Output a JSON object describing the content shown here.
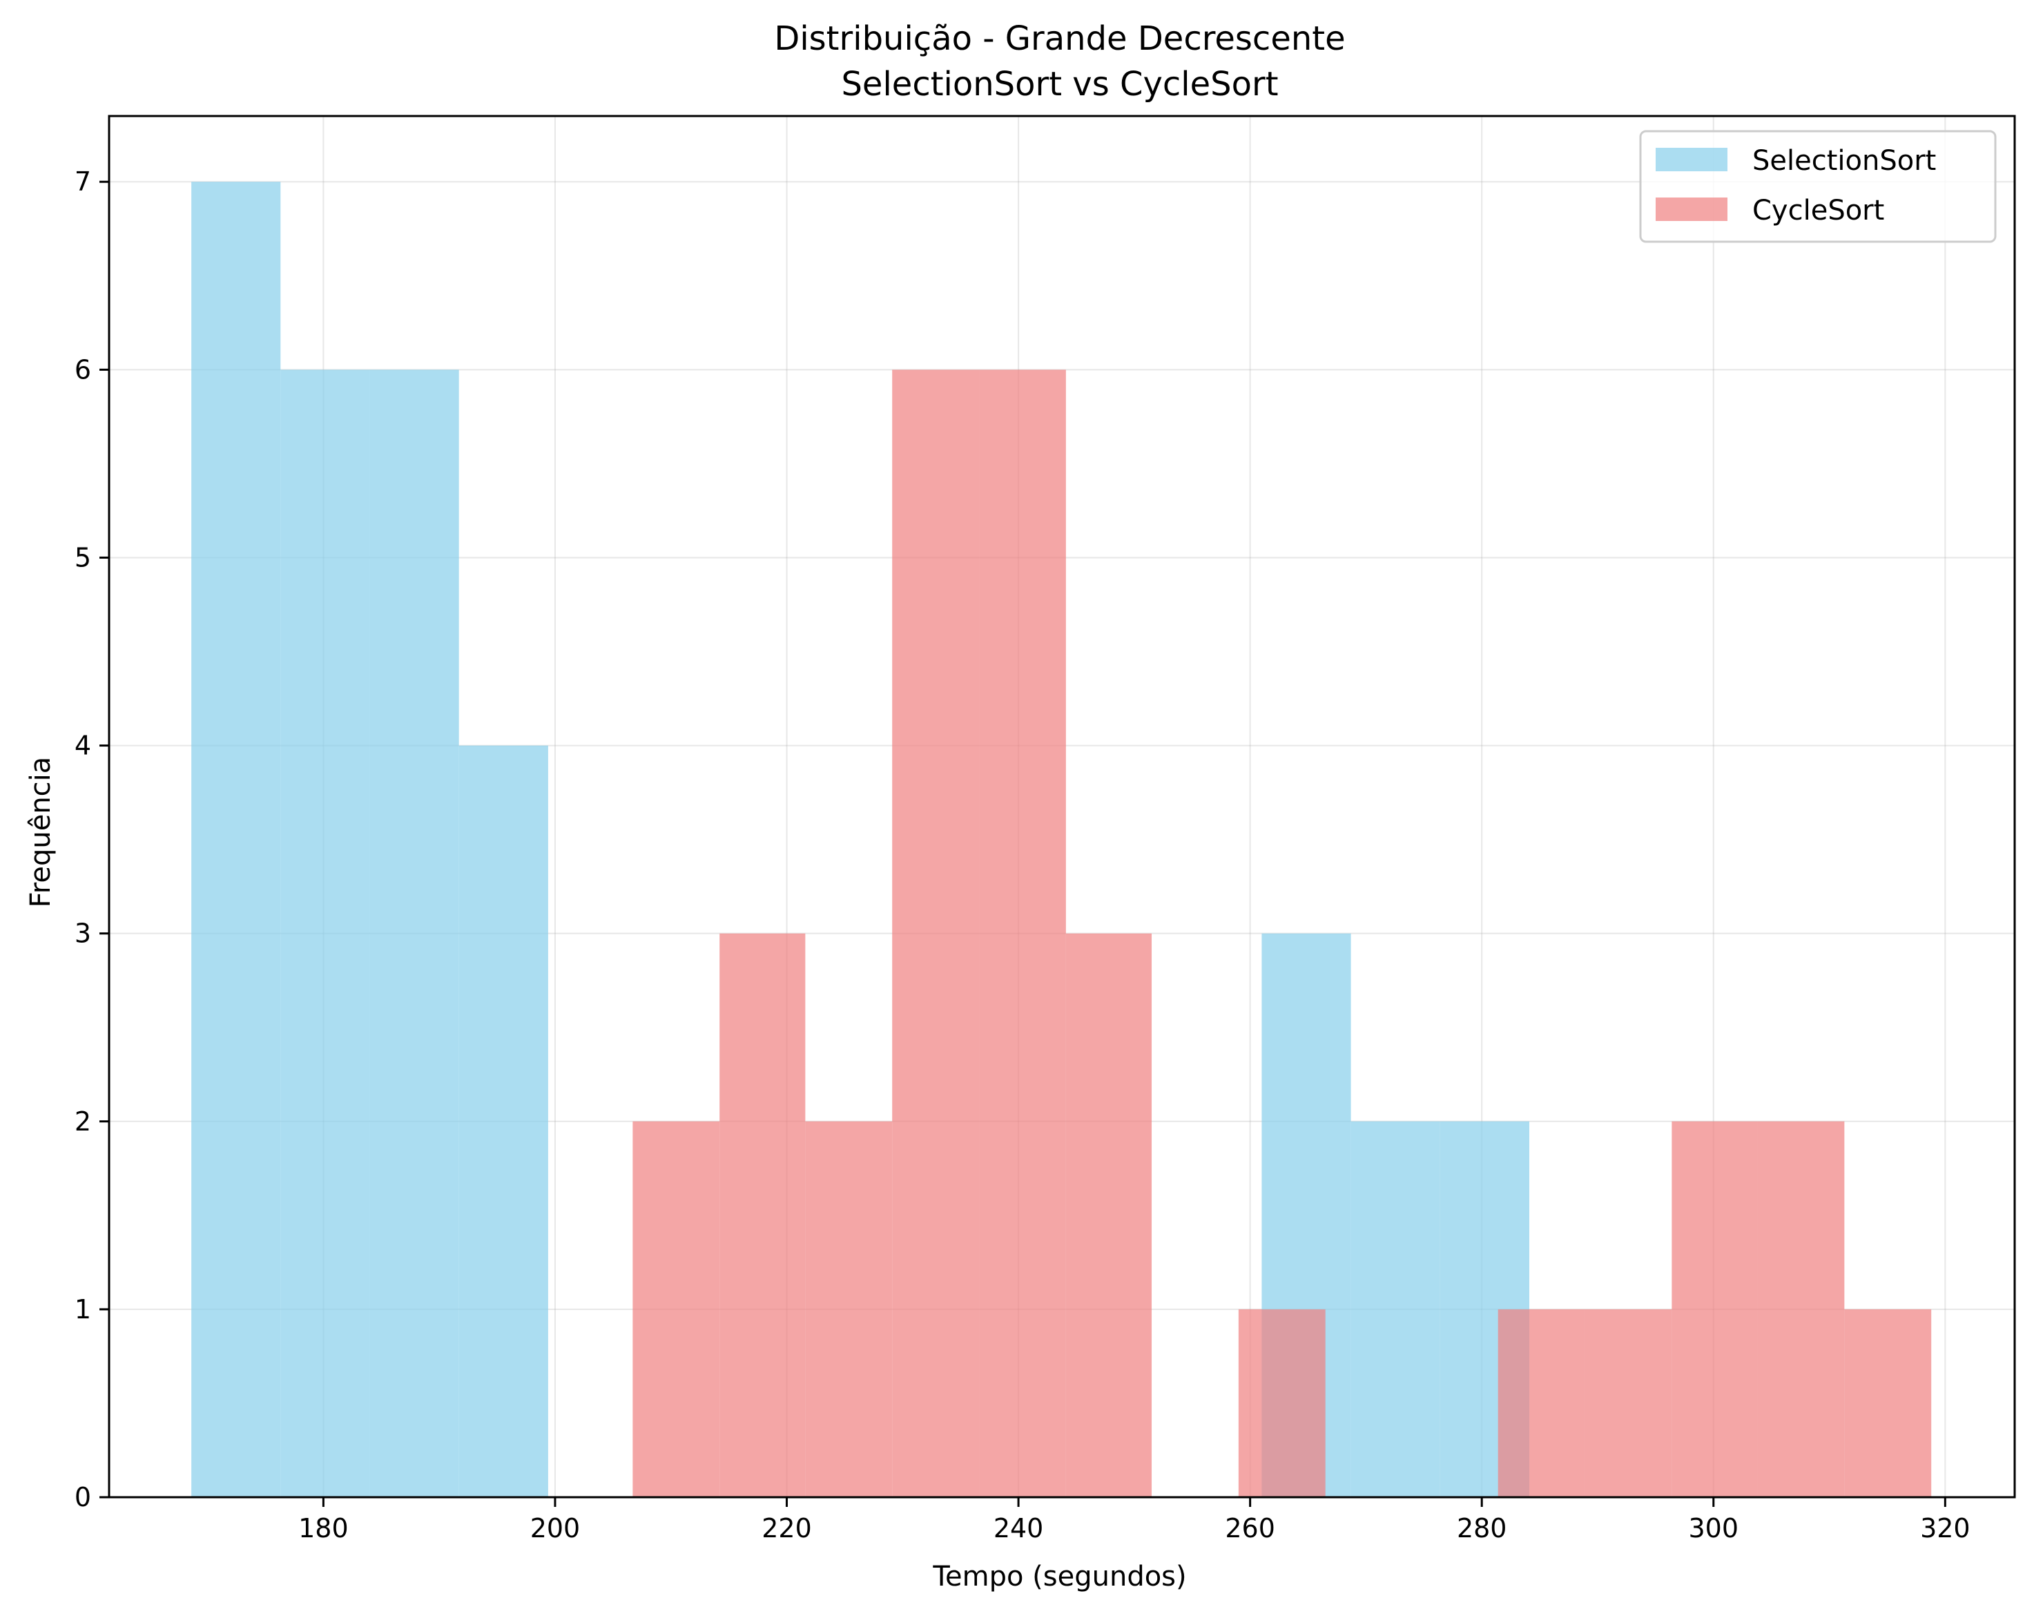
{
  "chart_data": {
    "type": "histogram",
    "title_line1": "Distribuição - Grande Decrescente",
    "title_line2": "SelectionSort vs CycleSort",
    "xlabel": "Tempo (segundos)",
    "ylabel": "Frequência",
    "xlim": [
      161.5,
      326
    ],
    "ylim": [
      0,
      7.35
    ],
    "xticks": [
      180,
      200,
      220,
      240,
      260,
      280,
      300,
      320
    ],
    "yticks": [
      0,
      1,
      2,
      3,
      4,
      5,
      6,
      7
    ],
    "grid": true,
    "legend_position": "top-right",
    "series": [
      {
        "name": "SelectionSort",
        "color": "#87ceeb",
        "opacity": 0.7,
        "bin_edges": [
          168.6,
          176.3,
          184.0,
          191.7,
          199.4,
          207.1,
          214.8,
          222.5,
          230.2,
          237.9,
          245.6,
          253.3,
          261.0,
          268.7,
          276.4,
          284.1
        ],
        "counts": [
          7,
          6,
          6,
          4,
          0,
          0,
          0,
          0,
          0,
          0,
          0,
          0,
          3,
          2,
          2
        ]
      },
      {
        "name": "CycleSort",
        "color": "#f08080",
        "opacity": 0.7,
        "bin_edges": [
          206.7,
          214.2,
          221.6,
          229.1,
          236.6,
          244.1,
          251.5,
          259.0,
          266.5,
          274.0,
          281.4,
          288.9,
          296.4,
          303.8,
          311.3,
          318.8
        ],
        "counts": [
          2,
          3,
          2,
          6,
          6,
          3,
          0,
          1,
          0,
          0,
          1,
          1,
          2,
          2,
          1
        ]
      }
    ]
  }
}
